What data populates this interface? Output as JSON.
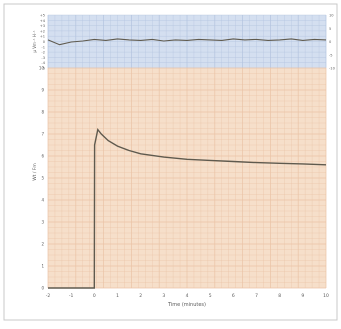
{
  "colors": {
    "top_panel_bg": "#d4dff0",
    "bottom_panel_bg": "#f6dfca",
    "grid_top": "#b3c3de",
    "grid_bottom": "#eac3a6",
    "trace": "#5f5a4e",
    "frame": "#c9c9c9",
    "axis_text": "#5a5a5a"
  },
  "chart_data": [
    {
      "type": "line",
      "panel": "top",
      "ylabel": "µ Vm⁻¹ H⁻¹",
      "ylim": [
        -5,
        5
      ],
      "y_ticks_left": [
        "+5",
        "+4",
        "+3",
        "+2",
        "+1",
        "0",
        "-1",
        "-2",
        "-3",
        "-4",
        "-5"
      ],
      "y_ticks_right": [
        "10",
        "5",
        "0",
        "-5",
        "-10"
      ],
      "xlim": [
        -2,
        10
      ],
      "series": [
        {
          "x": [
            -2,
            -1.5,
            -1,
            -0.5,
            0,
            0.5,
            1,
            1.5,
            2,
            2.5,
            3,
            3.5,
            4,
            4.5,
            5,
            5.5,
            6,
            6.5,
            7,
            7.5,
            8,
            8.5,
            9,
            9.5,
            10
          ],
          "y": [
            0.3,
            -0.6,
            -0.1,
            0.1,
            0.4,
            0.2,
            0.5,
            0.3,
            0.2,
            0.4,
            0.1,
            0.3,
            0.2,
            0.4,
            0.3,
            0.2,
            0.5,
            0.3,
            0.4,
            0.2,
            0.3,
            0.5,
            0.2,
            0.4,
            0.3
          ]
        }
      ]
    },
    {
      "type": "line",
      "panel": "bottom",
      "ylabel": "Wt / Fm",
      "xlabel": "Time (minutes)",
      "xlim": [
        -2,
        10
      ],
      "ylim": [
        0,
        10
      ],
      "x_ticks": [
        "-2",
        "-1",
        "0",
        "1",
        "2",
        "3",
        "4",
        "5",
        "6",
        "7",
        "8",
        "9",
        "10"
      ],
      "y_ticks": [
        "10",
        "9",
        "8",
        "7",
        "6",
        "5",
        "4",
        "3",
        "2",
        "1",
        "0"
      ],
      "series": [
        {
          "x": [
            -2,
            0,
            0.01,
            0.15,
            0.3,
            0.6,
            1,
            1.5,
            2,
            3,
            4,
            5,
            6,
            7,
            8,
            9,
            10
          ],
          "y": [
            0,
            0,
            6.5,
            7.2,
            7.0,
            6.7,
            6.45,
            6.25,
            6.1,
            5.95,
            5.85,
            5.8,
            5.75,
            5.7,
            5.67,
            5.64,
            5.6
          ]
        }
      ]
    }
  ]
}
